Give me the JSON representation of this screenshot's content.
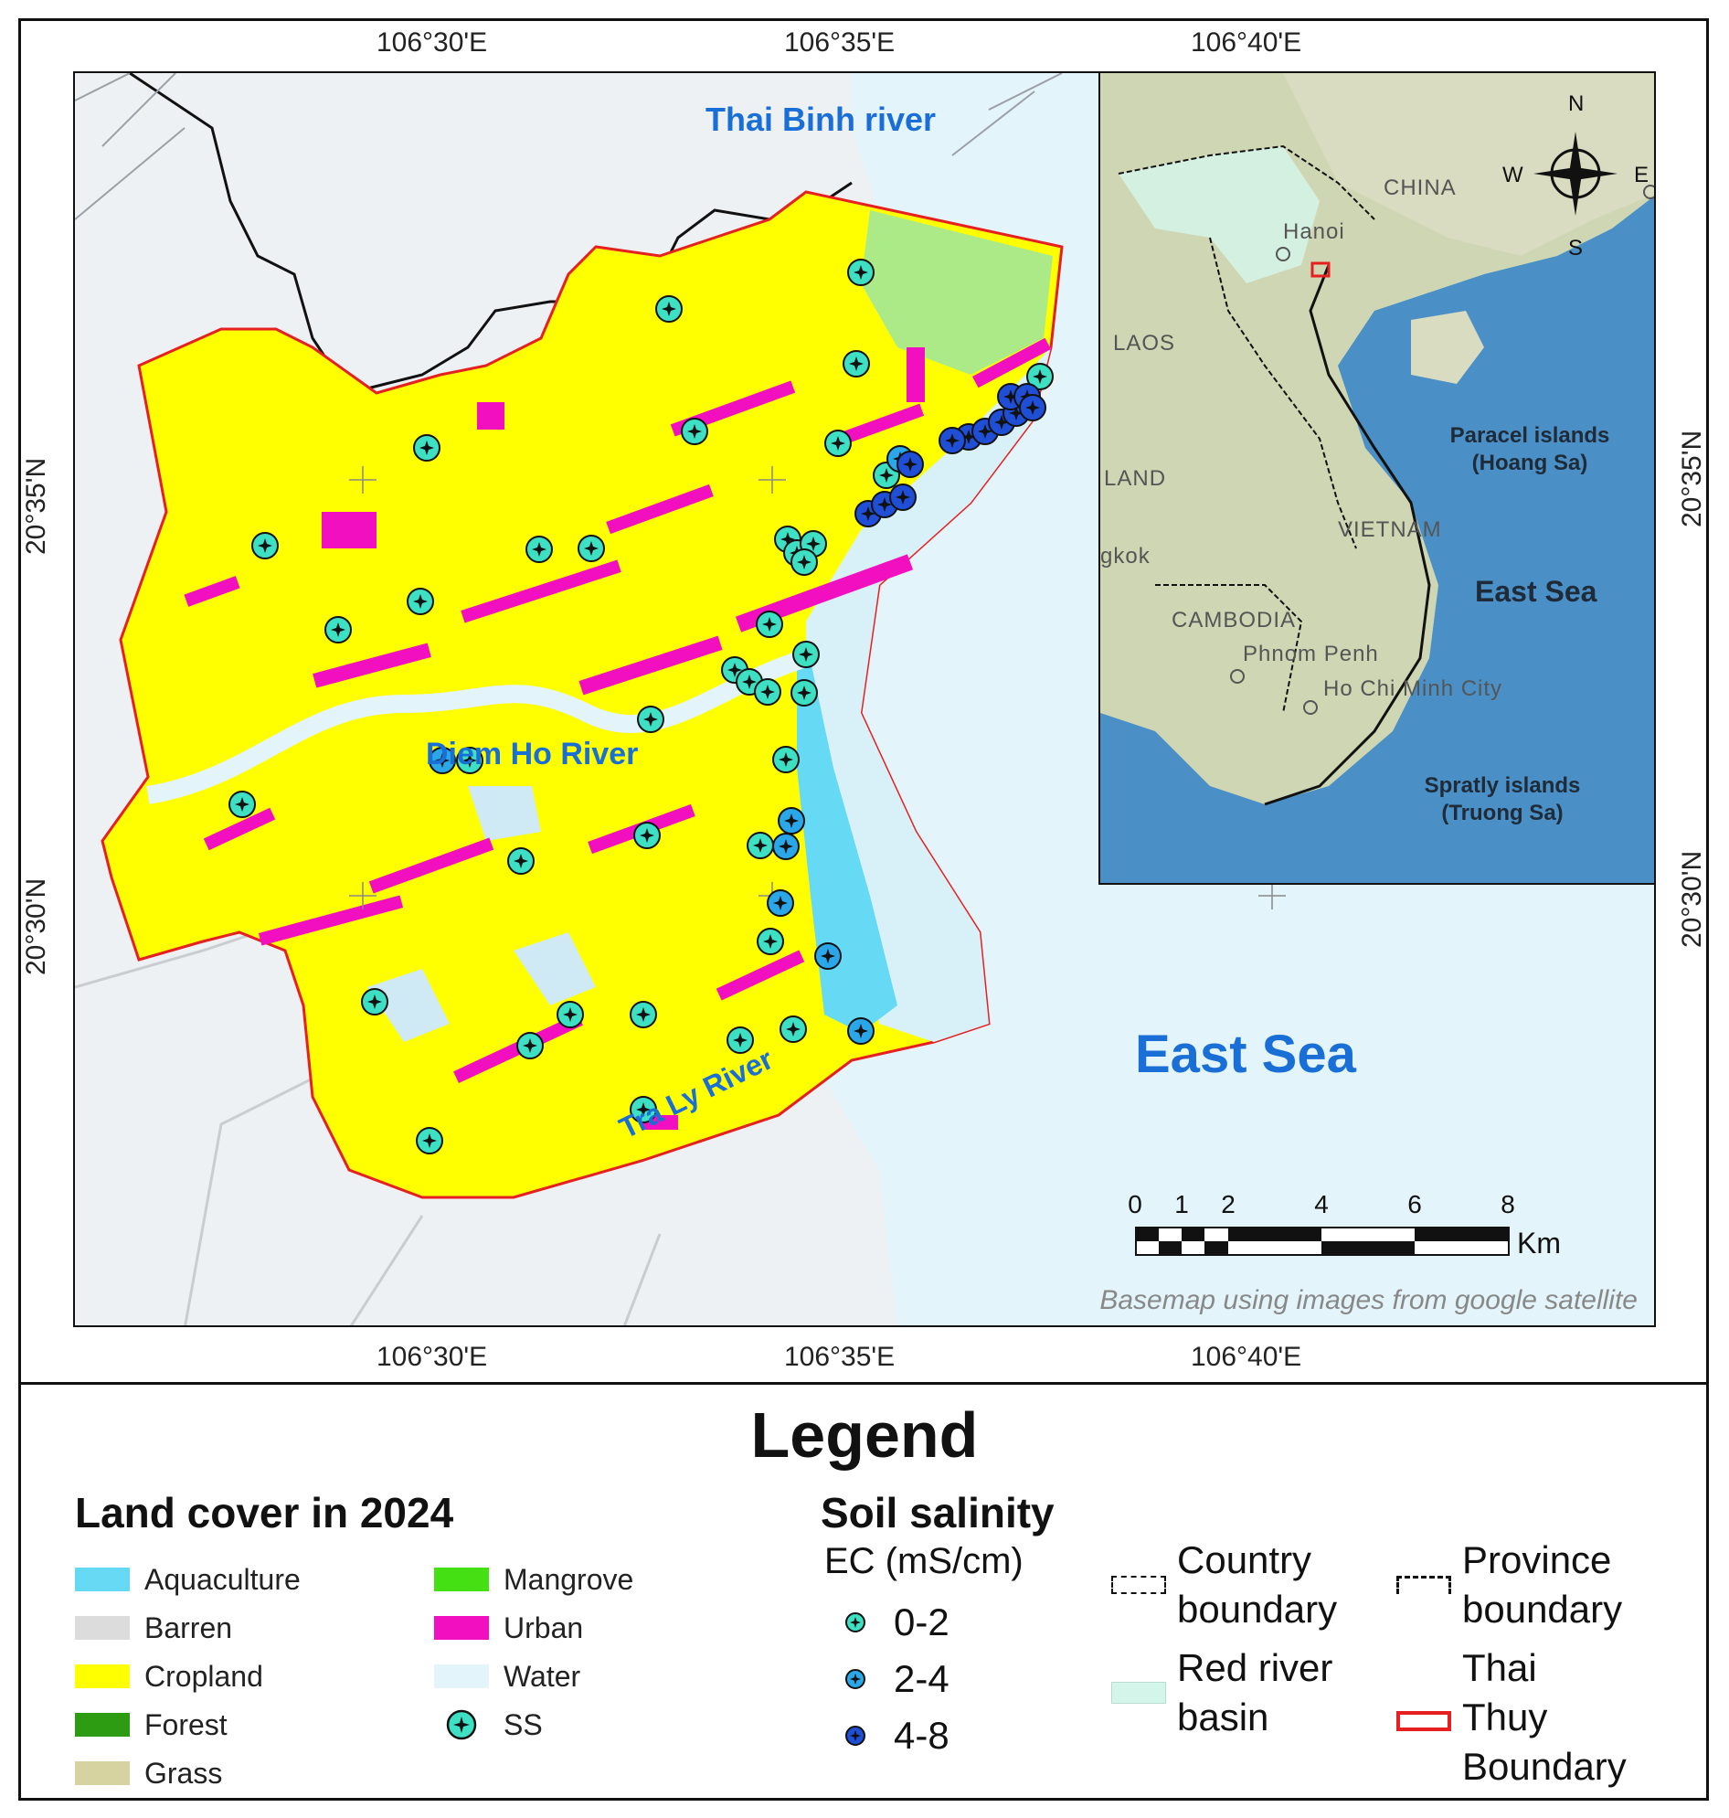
{
  "map": {
    "top_ticks": [
      "106°30'E",
      "106°35'E",
      "106°40'E"
    ],
    "bottom_ticks": [
      "106°30'E",
      "106°35'E",
      "106°40'E"
    ],
    "left_ticks": [
      "20°35'N",
      "20°30'N"
    ],
    "right_ticks": [
      "20°35'N",
      "20°30'N"
    ],
    "river_labels": {
      "thai_binh": "Thai Binh river",
      "diem_ho": "Diem Ho River",
      "tra_ly": "Tra Ly River"
    },
    "sea_label": "East Sea",
    "credit": "Basemap using images from google satellite",
    "scale_bar": {
      "ticks": [
        "0",
        "1",
        "2",
        "4",
        "6",
        "8"
      ],
      "unit": "Km"
    },
    "colors": {
      "cropland": "#ffff00",
      "urban": "#ff00c8",
      "aquaculture": "#66d9f5",
      "water": "#e3f4fb",
      "boundary": "#e62020",
      "ss_low": "#3ee0c4",
      "ss_mid": "#29a7e8",
      "ss_high": "#1e4fd6"
    }
  },
  "inset": {
    "labels": {
      "china": "CHINA",
      "laos": "LAOS",
      "land": "LAND",
      "gkok": "gkok",
      "vietnam": "VIETNAM",
      "cambodia": "CAMBODIA",
      "hanoi": "Hanoi",
      "phnom_penh": "Phnom Penh",
      "hcmc": "Ho Chi Minh City",
      "paracel": "Paracel islands",
      "paracel_sub": "(Hoang Sa)",
      "east_sea": "East Sea",
      "spratly": "Spratly islands",
      "spratly_sub": "(Truong Sa)"
    },
    "compass": {
      "n": "N",
      "s": "S",
      "e": "E",
      "w": "W"
    }
  },
  "legend": {
    "title": "Legend",
    "land_cover_title": "Land cover in 2024",
    "land_cover": [
      {
        "label": "Aquaculture",
        "color": "#66d9f5"
      },
      {
        "label": "Barren",
        "color": "#dcdcdc"
      },
      {
        "label": "Cropland",
        "color": "#ffff00"
      },
      {
        "label": "Forest",
        "color": "#2d9c12"
      },
      {
        "label": "Grass",
        "color": "#d6d3a0"
      },
      {
        "label": "Mangrove",
        "color": "#44e014"
      },
      {
        "label": "Urban",
        "color": "#f20fc0"
      },
      {
        "label": "Water",
        "color": "#e3f4fb"
      },
      {
        "label": "SS",
        "color": "#3ee0c4"
      }
    ],
    "salinity_title": "Soil salinity",
    "salinity_unit": "EC (mS/cm)",
    "salinity_classes": [
      {
        "label": "0-2",
        "color": "#3ee0c4"
      },
      {
        "label": "2-4",
        "color": "#29a7e8"
      },
      {
        "label": "4-8",
        "color": "#1e4fd6"
      }
    ],
    "boundaries": {
      "country_line1": "Country",
      "country_line2": "boundary",
      "province_line1": "Province",
      "province_line2": "boundary",
      "basin_line1": "Red river",
      "basin_line2": "basin",
      "thai_line1": "Thai",
      "thai_line2": "Thuy",
      "thai_line3": "Boundary"
    },
    "basin_color": "#d4f5e9"
  }
}
